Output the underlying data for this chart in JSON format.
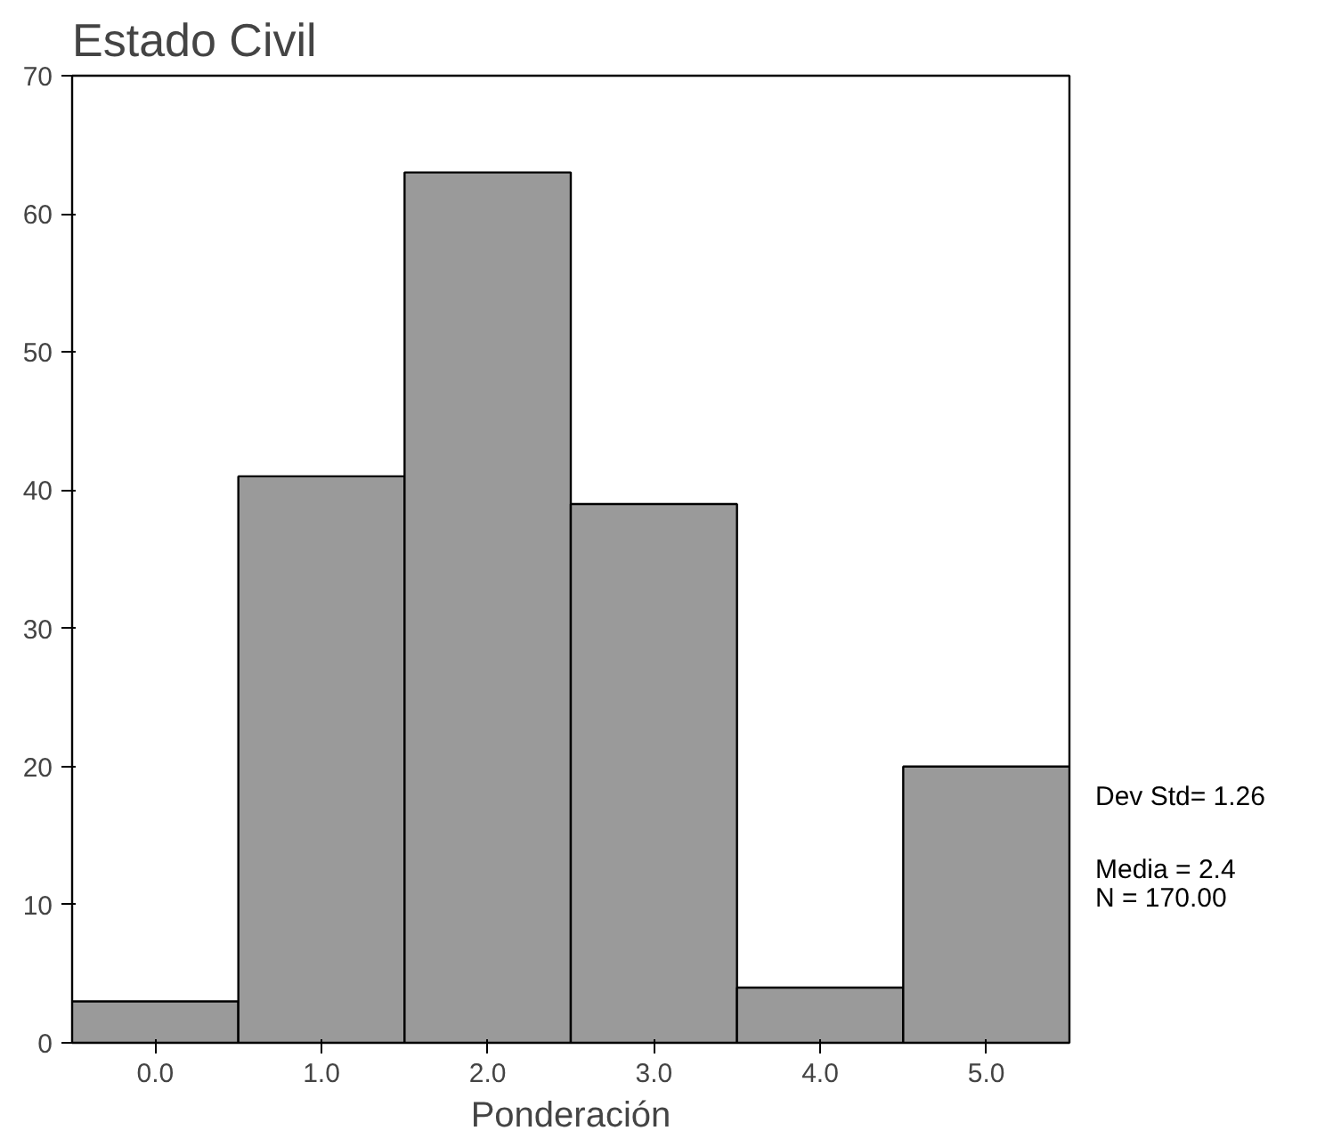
{
  "chart_data": {
    "type": "histogram",
    "title": "Estado Civil",
    "xlabel": "Ponderación",
    "bins": [
      -0.5,
      0.5,
      1.5,
      2.5,
      3.5,
      4.5,
      5.5
    ],
    "values": [
      3,
      41,
      63,
      39,
      4,
      20
    ],
    "color": "#9a9a9a",
    "xlim": [
      -0.5,
      5.5
    ],
    "ylim": [
      0,
      70
    ],
    "xticks": [
      {
        "value": 0,
        "label": "0.0"
      },
      {
        "value": 1,
        "label": "1.0"
      },
      {
        "value": 2,
        "label": "2.0"
      },
      {
        "value": 3,
        "label": "3.0"
      },
      {
        "value": 4,
        "label": "4.0"
      },
      {
        "value": 5,
        "label": "5.0"
      }
    ],
    "yticks": [
      0,
      10,
      20,
      30,
      40,
      50,
      60,
      70
    ],
    "grid": false,
    "annotations": [
      "Dev  Std= 1.26",
      "Media = 2.4",
      "N = 170.00"
    ]
  }
}
